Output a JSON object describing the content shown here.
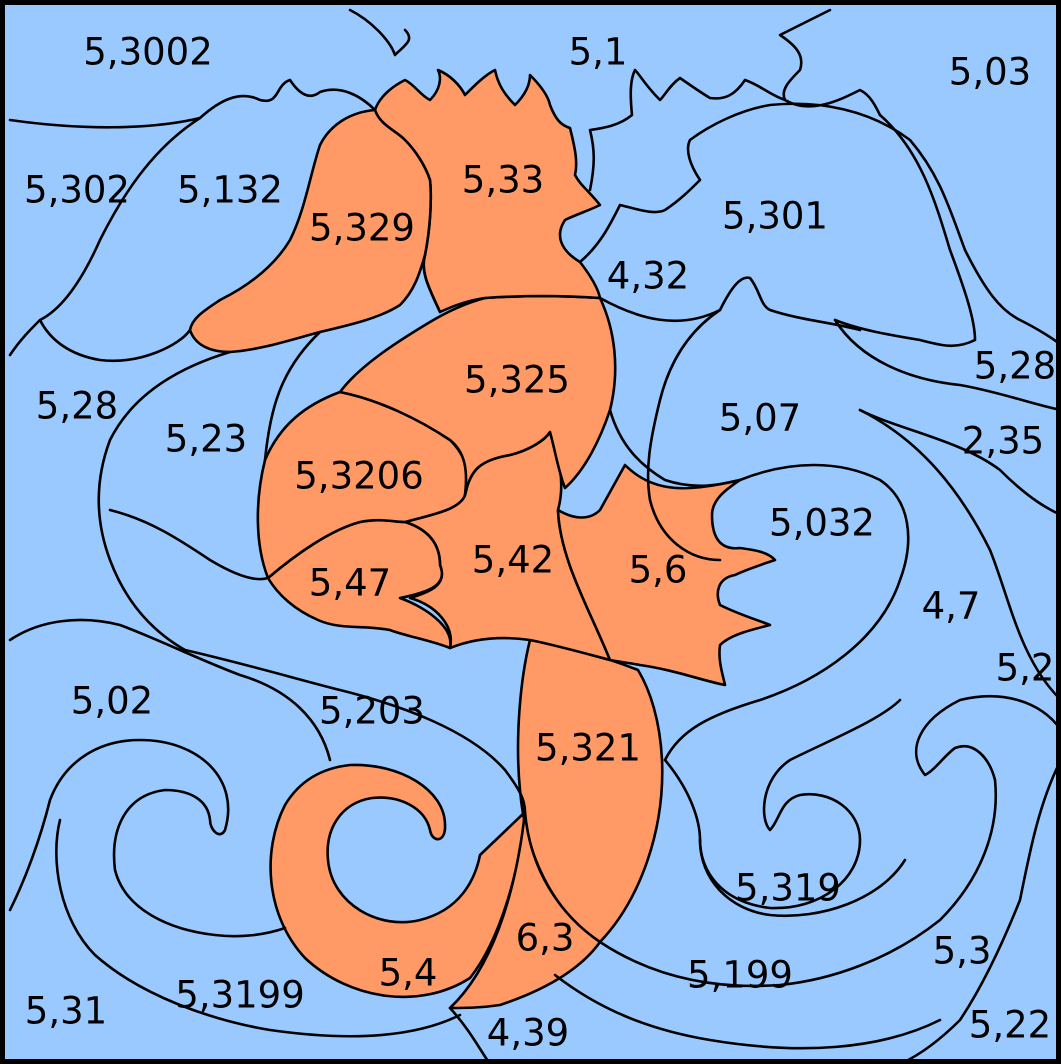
{
  "palette": {
    "water": "#99c9ff",
    "seahorse": "#ff9966",
    "outline": "#000000"
  },
  "labels": {
    "r_5_3002": "5,3002",
    "r_5_1": "5,1",
    "r_5_03": "5,03",
    "r_5_302": "5,302",
    "r_5_132": "5,132",
    "r_5_329": "5,329",
    "r_5_33": "5,33",
    "r_5_301": "5,301",
    "r_4_32": "4,32",
    "r_5_28_right": "5,28",
    "r_5_28_left": "5,28",
    "r_5_325": "5,325",
    "r_5_07": "5,07",
    "r_2_35": "2,35",
    "r_5_23": "5,23",
    "r_5_3206": "5,3206",
    "r_5_032": "5,032",
    "r_5_42": "5,42",
    "r_5_6": "5,6",
    "r_5_47": "5,47",
    "r_4_7": "4,7",
    "r_5_2": "5,2",
    "r_5_02": "5,02",
    "r_5_203": "5,203",
    "r_5_321": "5,321",
    "r_5_319": "5,319",
    "r_6_3": "6,3",
    "r_5_3": "5,3",
    "r_5_4": "5,4",
    "r_5_199": "5,199",
    "r_5_3199": "5,3199",
    "r_5_31": "5,31",
    "r_4_39": "4,39",
    "r_5_22": "5,22"
  }
}
